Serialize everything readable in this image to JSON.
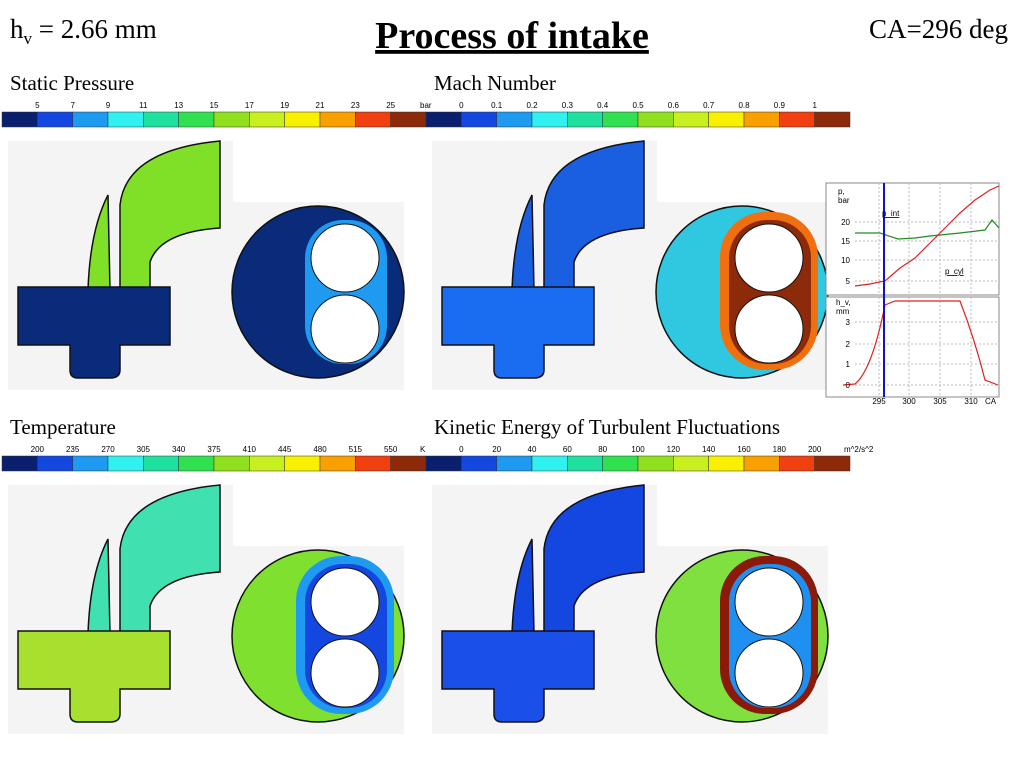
{
  "header": {
    "h": "h",
    "sub": "v",
    "value": " = 2.66 mm",
    "title": "Process of intake",
    "crank_angle": "CA=296 deg"
  },
  "panels": [
    {
      "title": "Static Pressure",
      "colorbar": {
        "ticks": [
          5,
          7,
          9,
          11,
          13,
          15,
          17,
          19,
          21,
          23,
          25
        ],
        "unit": "bar"
      }
    },
    {
      "title": "Mach Number",
      "colorbar": {
        "ticks": [
          0,
          0.1,
          0.2,
          0.3,
          0.4,
          0.5,
          0.6,
          0.7,
          0.8,
          0.9,
          1
        ]
      }
    },
    {
      "title": "Temperature",
      "colorbar": {
        "ticks": [
          200,
          235,
          270,
          305,
          340,
          375,
          410,
          445,
          480,
          515,
          550
        ],
        "unit": "K"
      }
    },
    {
      "title": "Kinetic Energy of Turbulent Fluctuations",
      "colorbar": {
        "ticks": [
          0,
          20,
          40,
          60,
          80,
          100,
          120,
          140,
          160,
          180,
          200
        ],
        "unit": "m^2/s^2"
      }
    }
  ],
  "inset": {
    "top_y_label": [
      "p,",
      "bar"
    ],
    "top_y_ticks": [
      20,
      15,
      10,
      5
    ],
    "series_labels": [
      "p_int",
      "p_cyl"
    ],
    "bottom_y_label": [
      "h_v,",
      "mm"
    ],
    "bottom_y_ticks": [
      3,
      2,
      1,
      0
    ],
    "x_ticks": [
      295,
      300,
      305,
      310
    ],
    "x_label": "CA"
  }
}
